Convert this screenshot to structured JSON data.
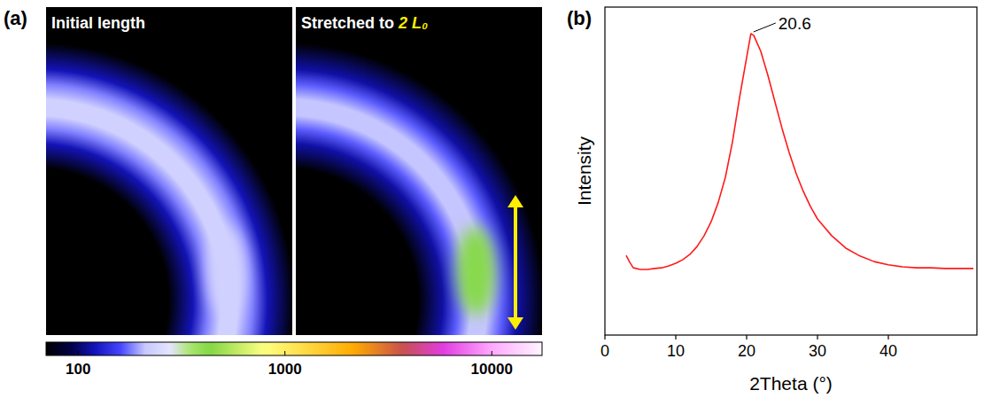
{
  "chart_data": [
    {
      "type": "image",
      "panel": "(a)",
      "images": [
        {
          "label": "Initial length",
          "ring_intensity": 230,
          "equator_intensity": 230
        },
        {
          "label": "Stretched to 2 L₀",
          "ring_intensity": 210,
          "equator_intensity": 420
        }
      ],
      "colorbar_range": [
        70,
        17500
      ],
      "colorbar_ticks": [
        100,
        1000,
        10000
      ],
      "log": true
    },
    {
      "type": "line",
      "panel": "(b)",
      "x": [
        3,
        3.5,
        4,
        5,
        6,
        7,
        8,
        9,
        10,
        11,
        12,
        13,
        14,
        15,
        16,
        17,
        18,
        19,
        20,
        20.6,
        21,
        22,
        23,
        24,
        25,
        26,
        27,
        28,
        29,
        30,
        32,
        34,
        36,
        38,
        40,
        42,
        44,
        46,
        48,
        50,
        52
      ],
      "values": [
        24.3,
        22.2,
        20.5,
        20.0,
        20.0,
        20.3,
        20.5,
        21.1,
        21.9,
        23.0,
        24.6,
        27.0,
        30.3,
        34.6,
        40.5,
        48.1,
        58.9,
        72.4,
        84.6,
        91.9,
        91.4,
        86.5,
        79.2,
        71.1,
        63.0,
        55.7,
        49.2,
        43.8,
        39.2,
        35.4,
        30.3,
        26.5,
        24.1,
        22.4,
        21.4,
        20.8,
        20.5,
        20.5,
        20.3,
        20.3,
        20.3
      ],
      "color": "#ff1a1a",
      "xlabel": "2Theta (°)",
      "ylabel": "Intensity",
      "xlim": [
        0,
        52.5
      ],
      "xticks": [
        0,
        10,
        20,
        30,
        40
      ],
      "ylim": [
        0,
        100
      ],
      "tick_labels": "x",
      "annotations": [
        {
          "x": 20.6,
          "y": 91.9,
          "label": "20.6"
        }
      ]
    }
  ]
}
